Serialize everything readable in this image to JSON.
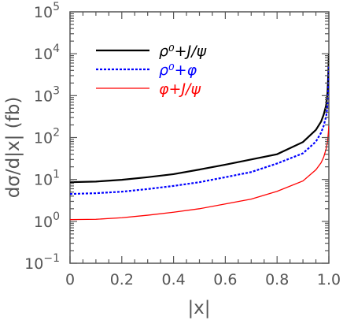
{
  "chart_data": {
    "type": "line",
    "xlabel": "|x|",
    "ylabel": "dσ/d|x| (fb)",
    "xlim": [
      0,
      1.0
    ],
    "ylim": [
      0.1,
      100000
    ],
    "yscale": "log",
    "x_ticks": [
      {
        "value": 0,
        "label": "0"
      },
      {
        "value": 0.2,
        "label": "0.2"
      },
      {
        "value": 0.4,
        "label": "0.4"
      },
      {
        "value": 0.6,
        "label": "0.6"
      },
      {
        "value": 0.8,
        "label": "0.8"
      },
      {
        "value": 1.0,
        "label": "1.0"
      }
    ],
    "y_ticks": [
      {
        "value": 0.1,
        "base": "10",
        "exp": "−1"
      },
      {
        "value": 1,
        "base": "10",
        "exp": "0"
      },
      {
        "value": 10,
        "base": "10",
        "exp": "1"
      },
      {
        "value": 100,
        "base": "10",
        "exp": "2"
      },
      {
        "value": 1000,
        "base": "10",
        "exp": "3"
      },
      {
        "value": 10000,
        "base": "10",
        "exp": "4"
      },
      {
        "value": 100000,
        "base": "10",
        "exp": "5"
      }
    ],
    "legend_position": "top-left",
    "series": [
      {
        "name": "ρ⁰+J/ψ",
        "color": "#000000",
        "style": "solid",
        "x": [
          0,
          0.1,
          0.2,
          0.3,
          0.4,
          0.5,
          0.6,
          0.7,
          0.8,
          0.9,
          0.95,
          0.97,
          0.98,
          0.99,
          0.995,
          0.998,
          1.0
        ],
        "y": [
          8.6,
          8.9,
          9.8,
          11.3,
          13.4,
          17.2,
          22.5,
          30,
          40,
          78,
          152,
          240,
          350,
          600,
          1200,
          3500,
          10000
        ]
      },
      {
        "name": "ρ⁰+φ",
        "color": "#0000ff",
        "style": "dotted",
        "x": [
          0,
          0.1,
          0.2,
          0.3,
          0.4,
          0.5,
          0.6,
          0.7,
          0.8,
          0.9,
          0.95,
          0.97,
          0.98,
          0.99,
          0.995,
          0.998,
          1.0
        ],
        "y": [
          4.5,
          4.7,
          5.1,
          5.9,
          7.0,
          8.6,
          11.3,
          15,
          24,
          42,
          80,
          130,
          190,
          330,
          600,
          1500,
          5000
        ]
      },
      {
        "name": "φ+J/ψ",
        "color": "#ff0000",
        "style": "solid",
        "x": [
          0,
          0.1,
          0.2,
          0.3,
          0.4,
          0.5,
          0.6,
          0.7,
          0.8,
          0.9,
          0.95,
          0.97,
          0.98,
          0.99,
          0.995,
          0.998,
          1.0
        ],
        "y": [
          1.1,
          1.12,
          1.22,
          1.4,
          1.65,
          2.0,
          2.6,
          3.4,
          5.2,
          9.2,
          17,
          25,
          34,
          55,
          80,
          130,
          190
        ]
      }
    ]
  }
}
